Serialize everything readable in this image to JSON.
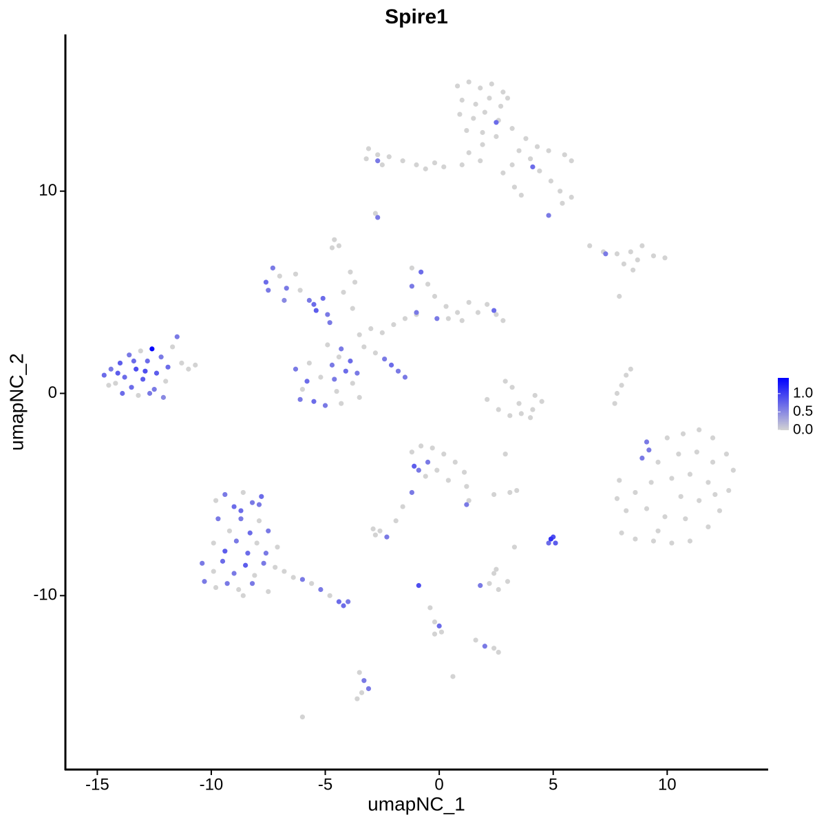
{
  "chart_data": {
    "type": "scatter",
    "title": "Spire1",
    "x_label": "umapNC_1",
    "y_label": "umapNC_2",
    "xlim": [
      -16.4,
      14.4
    ],
    "ylim": [
      -18.6,
      17.75
    ],
    "xticks": [
      -15,
      -10,
      -5,
      0,
      5,
      10
    ],
    "yticks": [
      -10,
      0,
      10
    ],
    "grid": false,
    "colors": [
      "#d3d3d3",
      "#0000ff"
    ],
    "colorlim": [
      0,
      1.43
    ],
    "colorticks": [
      {
        "value": 0,
        "label": "0.0"
      },
      {
        "value": 0.5,
        "label": "0.5"
      },
      {
        "value": 1,
        "label": "1.0"
      }
    ],
    "legend_position": "right",
    "x": [
      0.8,
      1.3,
      1.8,
      2.3,
      2.8,
      1.0,
      1.6,
      2.2,
      2.7,
      3.0,
      0.9,
      1.5,
      2.0,
      2.6,
      1.2,
      1.9,
      2.5,
      3.2,
      3.8,
      4.3,
      3.5,
      4.0,
      4.8,
      5.5,
      5.8,
      4.4,
      4.9,
      5.3,
      5.8,
      5.4,
      3.2,
      2.8,
      1.8,
      1.0,
      0.2,
      -0.2,
      1.3,
      1.9,
      3.3,
      3.6,
      2.5,
      4.1,
      4.8,
      -3.1,
      -2.7,
      -2.2,
      -1.6,
      -1.0,
      -0.6,
      -3.2,
      -2.5,
      -2.7,
      -2.8,
      -2.7,
      -4.6,
      -4.4,
      -4.7,
      6.6,
      7.2,
      7.8,
      8.4,
      8.9,
      9.4,
      9.9,
      8.7,
      8.1,
      8.5,
      7.3,
      7.9,
      -14.7,
      -14.4,
      -14.2,
      -14.0,
      -13.8,
      -13.6,
      -13.5,
      -13.3,
      -13.1,
      -13.0,
      -12.8,
      -12.6,
      -12.5,
      -12.4,
      -12.2,
      -12.0,
      -11.9,
      -11.7,
      -11.5,
      -11.3,
      -11.0,
      -10.7,
      -14.5,
      -13.9,
      -13.2,
      -12.7,
      -12.1,
      -14.1,
      -13.4,
      -12.9,
      -7.6,
      -7.3,
      -7.0,
      -6.7,
      -6.3,
      -6.1,
      -5.7,
      -5.4,
      -5.1,
      -4.9,
      -7.5,
      -6.8,
      -5.5,
      -4.8,
      -6.3,
      -6.0,
      -5.7,
      -5.5,
      -5.2,
      -5.0,
      -4.7,
      -4.5,
      -4.3,
      -4.1,
      -3.8,
      -3.6,
      -3.5,
      -6.1,
      -5.8,
      -4.4,
      -4.3,
      -4.9,
      -3.9,
      -4.6,
      -3.5,
      -3.0,
      -2.5,
      -2.0,
      -1.5,
      -1.0,
      -3.8,
      -3.3,
      -2.8,
      -2.4,
      -2.1,
      -1.8,
      -1.5,
      -4.2,
      -3.9,
      -3.7,
      -1.2,
      -0.8,
      -0.5,
      -0.2,
      0.3,
      0.8,
      1.3,
      1.7,
      2.1,
      2.5,
      2.8,
      1.0,
      0.4,
      -1.2,
      2.4,
      -0.1,
      -1.0,
      2.1,
      2.6,
      3.1,
      3.6,
      4.1,
      4.5,
      2.9,
      3.2,
      3.5,
      4.0,
      4.2,
      2.9,
      7.7,
      7.8,
      8.0,
      8.2,
      8.4,
      9.2,
      10.0,
      10.7,
      11.4,
      12.0,
      12.6,
      12.9,
      12.7,
      12.3,
      11.8,
      11.0,
      10.2,
      9.4,
      8.6,
      8.0,
      8.2,
      8.6,
      9.3,
      9.6,
      10.5,
      11.3,
      12.0,
      11.8,
      11.0,
      10.2,
      10.6,
      11.4,
      12.1,
      10.8,
      9.9,
      9.1,
      9.6,
      7.9,
      7.8,
      9.1,
      8.9,
      -1.2,
      -0.8,
      -0.3,
      0.2,
      0.7,
      1.1,
      1.2,
      1.3,
      0.4,
      -0.1,
      -0.6,
      -1.1,
      -0.9,
      -0.5,
      1.2,
      -1.2,
      -1.6,
      -1.9,
      -2.9,
      -2.6,
      -2.3,
      -2.8,
      3.1,
      3.4,
      2.4,
      4.9,
      5.0,
      5.1,
      4.8,
      3.3,
      1.8,
      2.2,
      2.6,
      3.0,
      2.4,
      2.5,
      -0.9,
      -0.4,
      -0.2,
      0.0,
      -0.2,
      0.1,
      1.6,
      2.0,
      2.4,
      2.6,
      -3.5,
      -3.3,
      -3.4,
      -3.1,
      -3.6,
      0.6,
      -6.0,
      -9.8,
      -9.4,
      -9.0,
      -8.6,
      -8.2,
      -7.8,
      -9.7,
      -9.2,
      -8.7,
      -8.3,
      -7.9,
      -7.5,
      -9.9,
      -9.4,
      -8.9,
      -8.4,
      -8.0,
      -7.6,
      -7.1,
      -10.4,
      -9.9,
      -9.5,
      -9.0,
      -8.5,
      -8.1,
      -7.7,
      -7.2,
      -6.8,
      -10.3,
      -9.8,
      -9.3,
      -8.8,
      -8.2,
      -6.4,
      -6.0,
      -5.6,
      -5.2,
      -4.8,
      -4.4,
      -4.0,
      -4.2,
      -8.6,
      -7.5,
      -8.7,
      -7.9
    ],
    "y": [
      15.2,
      15.4,
      15.1,
      15.3,
      14.9,
      14.5,
      14.3,
      14.6,
      14.2,
      14.6,
      13.8,
      13.6,
      13.9,
      13.5,
      13.0,
      12.9,
      12.7,
      13.1,
      12.6,
      12.2,
      12.0,
      11.6,
      12.0,
      11.8,
      11.5,
      11.0,
      10.5,
      10.0,
      9.7,
      9.4,
      11.3,
      10.9,
      11.5,
      11.3,
      11.2,
      11.4,
      11.9,
      12.3,
      10.2,
      9.8,
      13.4,
      11.2,
      8.8,
      12.1,
      11.8,
      11.7,
      11.5,
      11.3,
      11.1,
      11.6,
      11.3,
      11.5,
      8.9,
      8.7,
      7.6,
      7.3,
      7.2,
      7.3,
      7.0,
      6.9,
      7.0,
      7.3,
      6.8,
      6.7,
      6.6,
      6.4,
      6.1,
      6.9,
      4.8,
      0.9,
      1.2,
      0.5,
      1.5,
      0.8,
      1.9,
      0.3,
      1.2,
      2.1,
      0.7,
      1.6,
      2.2,
      0.2,
      1.0,
      1.8,
      0.6,
      1.3,
      2.3,
      2.8,
      1.5,
      1.2,
      1.4,
      0.4,
      0.0,
      -0.1,
      0.0,
      -0.2,
      1.0,
      1.6,
      1.1,
      5.5,
      6.2,
      5.8,
      5.2,
      5.9,
      5.1,
      4.6,
      4.1,
      4.7,
      3.9,
      5.1,
      4.6,
      4.4,
      3.5,
      1.2,
      0.2,
      1.5,
      -0.4,
      0.8,
      -0.6,
      1.4,
      0.1,
      -0.5,
      1.1,
      0.5,
      1.0,
      -0.2,
      -0.3,
      0.6,
      1.8,
      2.2,
      2.4,
      1.6,
      0.7,
      2.9,
      3.2,
      3.0,
      3.4,
      3.7,
      3.9,
      4.2,
      2.3,
      2.0,
      1.7,
      1.4,
      1.1,
      0.8,
      5.0,
      6.0,
      5.5,
      6.2,
      6.0,
      5.4,
      4.8,
      4.3,
      4.0,
      4.5,
      4.0,
      4.4,
      3.9,
      3.6,
      3.6,
      3.7,
      5.3,
      4.1,
      3.7,
      4.0,
      -0.3,
      -0.8,
      -1.1,
      -1.0,
      -0.8,
      -0.4,
      0.6,
      0.3,
      -0.5,
      -1.2,
      -0.1,
      -3.0,
      -0.5,
      0.0,
      0.4,
      0.9,
      1.2,
      -2.8,
      -2.2,
      -2.0,
      -1.8,
      -2.2,
      -3.0,
      -3.8,
      -4.8,
      -5.8,
      -6.6,
      -7.3,
      -7.4,
      -7.3,
      -7.2,
      -6.9,
      -5.8,
      -4.9,
      -4.4,
      -3.4,
      -3.0,
      -2.9,
      -3.4,
      -4.4,
      -4.0,
      -4.2,
      -5.1,
      -5.3,
      -5.0,
      -6.2,
      -6.1,
      -5.7,
      -6.8,
      -4.3,
      -5.2,
      -2.4,
      -3.2,
      -2.9,
      -2.6,
      -2.7,
      -3.0,
      -3.4,
      -3.9,
      -4.6,
      -5.3,
      -4.3,
      -3.8,
      -4.1,
      -3.6,
      -3.8,
      -3.4,
      -5.5,
      -4.9,
      -5.6,
      -6.3,
      -6.7,
      -6.8,
      -7.1,
      -7.0,
      -4.9,
      -4.8,
      -5.0,
      -7.2,
      -7.1,
      -7.4,
      -7.4,
      -7.6,
      -9.5,
      -9.4,
      -9.7,
      -9.3,
      -8.9,
      -8.7,
      -9.5,
      -10.6,
      -11.3,
      -11.5,
      -11.9,
      -11.8,
      -12.2,
      -12.5,
      -12.6,
      -12.8,
      -13.8,
      -14.2,
      -14.8,
      -14.6,
      -15.1,
      -14.0,
      -16.0,
      -5.3,
      -5.0,
      -5.6,
      -4.9,
      -5.4,
      -5.1,
      -6.2,
      -6.8,
      -6.2,
      -6.9,
      -6.3,
      -6.8,
      -7.4,
      -7.8,
      -7.3,
      -7.9,
      -7.4,
      -7.9,
      -7.6,
      -8.4,
      -8.8,
      -8.3,
      -8.9,
      -8.5,
      -9.0,
      -8.4,
      -8.6,
      -8.8,
      -9.3,
      -9.6,
      -9.4,
      -9.7,
      -9.4,
      -9.1,
      -9.2,
      -9.4,
      -9.7,
      -10.0,
      -10.3,
      -10.3,
      -10.5,
      -10.0,
      -9.8,
      -5.8,
      -5.5
    ],
    "values": [
      0,
      0,
      0,
      0,
      0,
      0,
      0,
      0,
      0,
      0,
      0,
      0,
      0,
      0,
      0,
      0,
      0,
      0,
      0,
      0,
      0,
      0,
      0,
      0,
      0,
      0,
      0,
      0,
      0,
      0,
      0,
      0,
      0,
      0,
      0,
      0,
      0,
      0,
      0,
      0,
      0.7,
      0.7,
      0.6,
      0,
      0,
      0,
      0,
      0,
      0,
      0,
      0,
      0.6,
      0,
      0.6,
      0,
      0,
      0,
      0,
      0,
      0,
      0,
      0,
      0,
      0,
      0,
      0,
      0,
      0.6,
      0,
      0.7,
      0.6,
      0,
      0.8,
      0.7,
      0.6,
      0.7,
      0.9,
      0,
      0.8,
      0.7,
      1.4,
      0.6,
      0.8,
      0.6,
      0,
      0.7,
      0,
      0.6,
      0,
      0,
      0,
      0,
      0.7,
      0,
      0.6,
      0.5,
      0.8,
      0.7,
      0.9,
      0.7,
      0.6,
      0,
      0.6,
      0,
      0,
      0.6,
      0.8,
      0.7,
      0.6,
      0.6,
      0.5,
      0.7,
      0.6,
      0.6,
      0,
      0,
      0.7,
      0,
      0.6,
      0.6,
      0,
      0,
      0.7,
      0,
      0.6,
      0,
      0.6,
      0.7,
      0,
      0.6,
      0,
      0.7,
      0.6,
      0,
      0,
      0,
      0,
      0,
      0,
      0,
      0,
      0,
      0.6,
      0.7,
      0.6,
      0.6,
      0,
      0,
      0,
      0,
      0.7,
      0,
      0,
      0,
      0,
      0,
      0,
      0,
      0,
      0,
      0,
      0,
      0.6,
      0.7,
      0.6,
      0.6,
      0,
      0,
      0,
      0,
      0,
      0,
      0,
      0,
      0,
      0,
      0,
      0,
      0,
      0,
      0,
      0,
      0,
      0.6,
      0,
      0,
      0,
      0,
      0,
      0,
      0,
      0,
      0,
      0,
      0,
      0,
      0,
      0,
      0,
      0,
      0,
      0,
      0,
      0,
      0,
      0,
      0,
      0,
      0,
      0,
      0,
      0,
      0,
      0,
      0,
      0,
      0,
      0.6,
      0.6,
      0,
      0,
      0,
      0,
      0,
      0,
      0,
      0,
      0,
      0,
      0,
      0.8,
      0.6,
      0.6,
      0.6,
      0.6,
      0,
      0,
      0,
      0,
      0.6,
      0,
      0,
      0,
      0,
      1.1,
      0.9,
      0.8,
      0.7,
      0,
      0.6,
      0,
      0,
      0,
      0,
      0,
      0.9,
      0,
      0,
      0.7,
      0,
      0,
      0,
      0.6,
      0,
      0,
      0,
      0.6,
      0,
      0.6,
      0,
      0,
      0,
      0,
      0.6,
      0.7,
      0,
      0.6,
      0.7,
      0.6,
      0,
      0.6,
      0.7,
      0,
      0.6,
      0,
      0.8,
      0.6,
      0.7,
      0,
      0.6,
      0,
      0.6,
      0,
      0.7,
      0.6,
      0.8,
      0,
      0.6,
      0,
      0,
      0.6,
      0,
      0.6,
      0,
      0.6,
      0,
      0.6,
      0,
      0.6,
      0,
      0.7,
      0.6,
      0.7,
      0,
      0,
      0.7,
      0.6
    ]
  }
}
